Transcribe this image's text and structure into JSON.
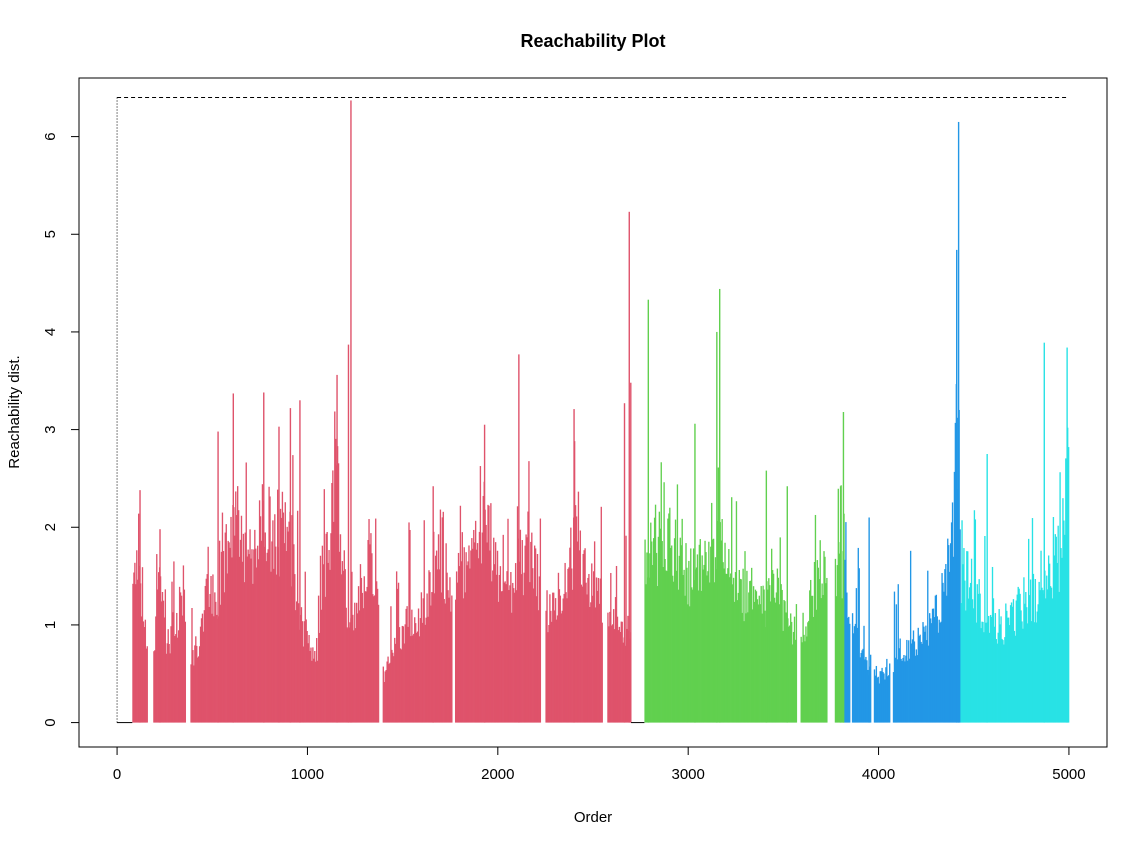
{
  "chart_data": {
    "type": "bar",
    "title": "Reachability Plot",
    "xlabel": "Order",
    "ylabel": "Reachability dist.",
    "xlim": [
      -200,
      5200
    ],
    "ylim": [
      -0.25,
      6.6
    ],
    "x_ticks": [
      0,
      1000,
      2000,
      3000,
      4000,
      5000
    ],
    "y_ticks": [
      0,
      1,
      2,
      3,
      4,
      5,
      6
    ],
    "threshold": 6.4,
    "n_points": 5000,
    "grid": false,
    "legend": "none",
    "colors": {
      "cluster_1": "#DF536B",
      "cluster_2": "#61D04F",
      "cluster_3": "#2297E6",
      "cluster_4": "#28E2E5",
      "noise": "#000000"
    },
    "segments": [
      {
        "cluster": "cluster_1",
        "x": [
          80,
          2700
        ]
      },
      {
        "cluster": "noise",
        "x": [
          2700,
          2770
        ]
      },
      {
        "cluster": "cluster_2",
        "x": [
          2770,
          3820
        ]
      },
      {
        "cluster": "cluster_3",
        "x": [
          3820,
          4430
        ]
      },
      {
        "cluster": "cluster_4",
        "x": [
          4430,
          5000
        ]
      }
    ],
    "profile": [
      [
        80,
        1.4
      ],
      [
        110,
        1.8
      ],
      [
        130,
        1.0
      ],
      [
        160,
        0.8
      ],
      [
        200,
        0.9
      ],
      [
        220,
        1.5
      ],
      [
        250,
        0.8
      ],
      [
        300,
        1.0
      ],
      [
        350,
        1.3
      ],
      [
        380,
        0.6
      ],
      [
        420,
        0.8
      ],
      [
        480,
        1.4
      ],
      [
        520,
        1.2
      ],
      [
        560,
        1.6
      ],
      [
        620,
        2.2
      ],
      [
        680,
        1.5
      ],
      [
        720,
        1.9
      ],
      [
        780,
        2.1
      ],
      [
        830,
        1.8
      ],
      [
        880,
        2.0
      ],
      [
        920,
        1.7
      ],
      [
        960,
        1.1
      ],
      [
        1000,
        0.8
      ],
      [
        1050,
        0.7
      ],
      [
        1100,
        1.6
      ],
      [
        1150,
        2.6
      ],
      [
        1200,
        1.2
      ],
      [
        1250,
        1.1
      ],
      [
        1300,
        1.6
      ],
      [
        1360,
        1.4
      ],
      [
        1400,
        0.4
      ],
      [
        1450,
        0.8
      ],
      [
        1500,
        1.0
      ],
      [
        1560,
        1.0
      ],
      [
        1620,
        1.2
      ],
      [
        1680,
        1.6
      ],
      [
        1720,
        1.5
      ],
      [
        1760,
        1.2
      ],
      [
        1800,
        1.6
      ],
      [
        1850,
        1.7
      ],
      [
        1900,
        2.1
      ],
      [
        1950,
        2.0
      ],
      [
        2000,
        1.4
      ],
      [
        2050,
        1.3
      ],
      [
        2100,
        1.6
      ],
      [
        2150,
        1.7
      ],
      [
        2200,
        1.5
      ],
      [
        2250,
        1.1
      ],
      [
        2300,
        1.3
      ],
      [
        2350,
        1.4
      ],
      [
        2400,
        1.8
      ],
      [
        2450,
        1.5
      ],
      [
        2500,
        1.3
      ],
      [
        2550,
        1.2
      ],
      [
        2600,
        1.1
      ],
      [
        2650,
        1.0
      ],
      [
        2690,
        1.0
      ],
      [
        2770,
        1.6
      ],
      [
        2800,
        1.7
      ],
      [
        2850,
        1.8
      ],
      [
        2900,
        1.9
      ],
      [
        2950,
        1.6
      ],
      [
        3000,
        1.5
      ],
      [
        3050,
        1.6
      ],
      [
        3100,
        1.5
      ],
      [
        3150,
        1.8
      ],
      [
        3200,
        1.5
      ],
      [
        3250,
        1.3
      ],
      [
        3300,
        1.3
      ],
      [
        3350,
        1.3
      ],
      [
        3400,
        1.2
      ],
      [
        3450,
        1.4
      ],
      [
        3500,
        1.1
      ],
      [
        3550,
        1.0
      ],
      [
        3600,
        1.0
      ],
      [
        3650,
        1.3
      ],
      [
        3700,
        1.6
      ],
      [
        3750,
        1.2
      ],
      [
        3800,
        1.6
      ],
      [
        3820,
        1.4
      ],
      [
        3860,
        1.0
      ],
      [
        3900,
        0.8
      ],
      [
        3950,
        0.6
      ],
      [
        4000,
        0.5
      ],
      [
        4050,
        0.6
      ],
      [
        4100,
        0.7
      ],
      [
        4150,
        0.8
      ],
      [
        4200,
        0.8
      ],
      [
        4250,
        0.9
      ],
      [
        4300,
        1.1
      ],
      [
        4350,
        1.4
      ],
      [
        4390,
        2.0
      ],
      [
        4420,
        3.0
      ],
      [
        4430,
        1.5
      ],
      [
        4480,
        1.4
      ],
      [
        4550,
        1.1
      ],
      [
        4600,
        0.9
      ],
      [
        4650,
        1.0
      ],
      [
        4700,
        1.1
      ],
      [
        4750,
        1.2
      ],
      [
        4800,
        1.3
      ],
      [
        4850,
        1.3
      ],
      [
        4900,
        1.5
      ],
      [
        4950,
        1.7
      ],
      [
        4990,
        2.5
      ],
      [
        5000,
        2.6
      ]
    ],
    "peaks": [
      [
        120,
        2.38
      ],
      [
        225,
        1.98
      ],
      [
        530,
        2.98
      ],
      [
        610,
        3.37
      ],
      [
        770,
        3.38
      ],
      [
        850,
        3.03
      ],
      [
        910,
        3.22
      ],
      [
        960,
        3.3
      ],
      [
        1155,
        3.56
      ],
      [
        1215,
        3.87
      ],
      [
        1228,
        6.37
      ],
      [
        1660,
        2.42
      ],
      [
        1930,
        3.05
      ],
      [
        2110,
        3.77
      ],
      [
        2400,
        3.21
      ],
      [
        2665,
        3.27
      ],
      [
        2690,
        5.23
      ],
      [
        2698,
        3.48
      ],
      [
        2790,
        4.33
      ],
      [
        3035,
        3.06
      ],
      [
        3150,
        4.0
      ],
      [
        3165,
        4.44
      ],
      [
        3410,
        2.58
      ],
      [
        3520,
        2.42
      ],
      [
        3800,
        2.42
      ],
      [
        3815,
        3.18
      ],
      [
        3950,
        2.1
      ],
      [
        4410,
        4.84
      ],
      [
        4420,
        6.15
      ],
      [
        4570,
        2.75
      ],
      [
        4870,
        3.89
      ],
      [
        4990,
        3.84
      ]
    ],
    "gaps": [
      [
        160,
        190
      ],
      [
        360,
        385
      ],
      [
        1375,
        1395
      ],
      [
        1760,
        1775
      ],
      [
        2225,
        2250
      ],
      [
        2550,
        2575
      ],
      [
        3570,
        3590
      ],
      [
        3730,
        3770
      ],
      [
        3850,
        3860
      ],
      [
        3960,
        3975
      ],
      [
        4060,
        4075
      ]
    ]
  }
}
